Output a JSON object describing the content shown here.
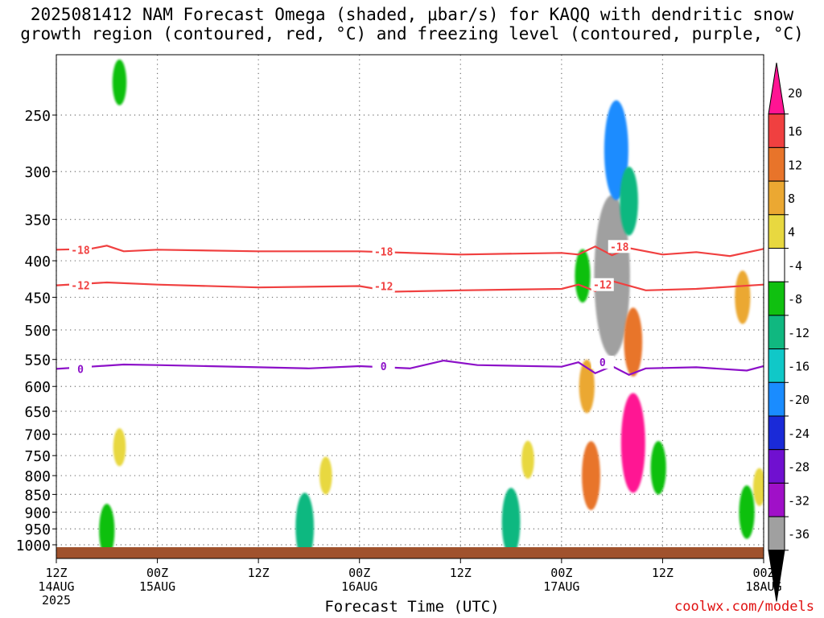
{
  "header": {
    "title_line1": "2025081412 NAM Forecast Omega (shaded, μbar/s) for KAQQ with dendritic snow",
    "title_line2": "growth region (contoured, red, °C) and freezing level (contoured, purple, °C)"
  },
  "footer": {
    "x_axis_title": "Forecast Time (UTC)",
    "credit": "coolwx.com/models"
  },
  "chart_data": {
    "type": "heatmap",
    "title": "2025081412 NAM Forecast Omega (shaded, μbar/s) for KAQQ with dendritic snow growth region (contoured, red, °C) and freezing level (contoured, purple, °C)",
    "xlabel": "Forecast Time (UTC)",
    "ylabel": "",
    "x_ticks": [
      {
        "hour": 0,
        "l1": "12Z",
        "l2": "14AUG",
        "l3": "2025"
      },
      {
        "hour": 12,
        "l1": "00Z",
        "l2": "15AUG",
        "l3": ""
      },
      {
        "hour": 24,
        "l1": "12Z",
        "l2": "",
        "l3": ""
      },
      {
        "hour": 36,
        "l1": "00Z",
        "l2": "16AUG",
        "l3": ""
      },
      {
        "hour": 48,
        "l1": "12Z",
        "l2": "",
        "l3": ""
      },
      {
        "hour": 60,
        "l1": "00Z",
        "l2": "17AUG",
        "l3": ""
      },
      {
        "hour": 72,
        "l1": "12Z",
        "l2": "",
        "l3": ""
      },
      {
        "hour": 84,
        "l1": "00Z",
        "l2": "18AUG",
        "l3": ""
      }
    ],
    "xlim": [
      0,
      84
    ],
    "y_ticks": [
      250,
      300,
      350,
      400,
      450,
      500,
      550,
      600,
      650,
      700,
      750,
      800,
      850,
      900,
      950,
      1000
    ],
    "ylim_hPa": [
      200,
      1030
    ],
    "y_scale": "log-pressure",
    "grid": true,
    "colorbar": {
      "labels": [
        "20",
        "16",
        "12",
        "8",
        "4",
        "-4",
        "-8",
        "-12",
        "-16",
        "-20",
        "-24",
        "-28",
        "-32",
        "-36"
      ],
      "colors": [
        "#ff1493",
        "#f04040",
        "#e8742a",
        "#eba832",
        "#e8d840",
        "#ffffff",
        "#10c010",
        "#10b880",
        "#10c8c8",
        "#1a8cff",
        "#1a2ad8",
        "#7010d0",
        "#a010c8",
        "#a0a0a0",
        "#000000"
      ]
    },
    "contours": [
      {
        "name": "-18",
        "color": "#f04040",
        "points": [
          [
            0,
            386
          ],
          [
            4,
            385
          ],
          [
            6,
            381
          ],
          [
            8,
            388
          ],
          [
            12,
            386
          ],
          [
            24,
            388
          ],
          [
            36,
            388
          ],
          [
            48,
            392
          ],
          [
            60,
            390
          ],
          [
            62,
            392
          ],
          [
            64,
            382
          ],
          [
            66,
            393
          ],
          [
            68,
            384
          ],
          [
            72,
            392
          ],
          [
            76,
            389
          ],
          [
            80,
            394
          ],
          [
            84,
            385
          ]
        ]
      },
      {
        "name": "-12",
        "color": "#f04040",
        "points": [
          [
            0,
            433
          ],
          [
            6,
            429
          ],
          [
            12,
            432
          ],
          [
            24,
            436
          ],
          [
            36,
            434
          ],
          [
            40,
            442
          ],
          [
            48,
            440
          ],
          [
            60,
            438
          ],
          [
            62,
            432
          ],
          [
            64,
            441
          ],
          [
            66,
            427
          ],
          [
            70,
            440
          ],
          [
            76,
            438
          ],
          [
            84,
            432
          ]
        ]
      },
      {
        "name": "0",
        "color": "#8c10c8",
        "points": [
          [
            0,
            567
          ],
          [
            4,
            563
          ],
          [
            8,
            559
          ],
          [
            12,
            560
          ],
          [
            18,
            562
          ],
          [
            24,
            564
          ],
          [
            30,
            566
          ],
          [
            36,
            562
          ],
          [
            42,
            566
          ],
          [
            46,
            552
          ],
          [
            50,
            560
          ],
          [
            60,
            563
          ],
          [
            62,
            555
          ],
          [
            64,
            575
          ],
          [
            66,
            562
          ],
          [
            68,
            578
          ],
          [
            70,
            566
          ],
          [
            76,
            564
          ],
          [
            82,
            570
          ],
          [
            84,
            562
          ]
        ]
      }
    ],
    "omega_features": [
      {
        "t": 7.5,
        "p": 225,
        "value": -6
      },
      {
        "t": 7.5,
        "p": 730,
        "value": 4
      },
      {
        "t": 6.0,
        "p": 955,
        "value": -8
      },
      {
        "t": 29.5,
        "p": 945,
        "value": -12
      },
      {
        "t": 32.0,
        "p": 800,
        "value": 4
      },
      {
        "t": 54.0,
        "p": 930,
        "value": -12
      },
      {
        "t": 56.0,
        "p": 760,
        "value": 4
      },
      {
        "t": 62.5,
        "p": 420,
        "value": -8
      },
      {
        "t": 63.0,
        "p": 600,
        "value": 8
      },
      {
        "t": 63.5,
        "p": 800,
        "value": 12
      },
      {
        "t": 66.0,
        "p": 420,
        "value": -36
      },
      {
        "t": 66.5,
        "p": 280,
        "value": -20
      },
      {
        "t": 68.0,
        "p": 330,
        "value": -12
      },
      {
        "t": 68.5,
        "p": 720,
        "value": 20
      },
      {
        "t": 68.5,
        "p": 520,
        "value": 12
      },
      {
        "t": 71.5,
        "p": 780,
        "value": -8
      },
      {
        "t": 81.5,
        "p": 450,
        "value": 8
      },
      {
        "t": 83.5,
        "p": 830,
        "value": 4
      },
      {
        "t": 82.0,
        "p": 900,
        "value": -8
      }
    ]
  }
}
